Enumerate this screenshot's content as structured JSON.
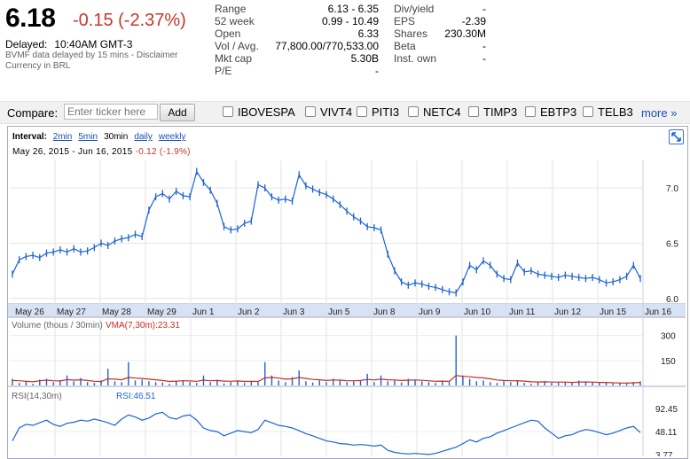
{
  "quote": {
    "price": "6.18",
    "change": "-0.15 (-2.37%)",
    "delayed_label": "Delayed:",
    "delayed_time": "10:40AM GMT-3",
    "disclaimer": "BVMF data delayed by 15 mins - Disclaimer",
    "currency": "Currency in BRL"
  },
  "stats_left": [
    {
      "label": "Range",
      "value": "6.13 - 6.35"
    },
    {
      "label": "52 week",
      "value": "0.99 - 10.49"
    },
    {
      "label": "Open",
      "value": "6.33"
    },
    {
      "label": "Vol / Avg.",
      "value": "77,800.00/770,533.00"
    },
    {
      "label": "Mkt cap",
      "value": "5.30B"
    },
    {
      "label": "P/E",
      "value": "-"
    }
  ],
  "stats_right": [
    {
      "label": "Div/yield",
      "value": "-"
    },
    {
      "label": "EPS",
      "value": "-2.39"
    },
    {
      "label": "Shares",
      "value": "230.30M"
    },
    {
      "label": "Beta",
      "value": "-"
    },
    {
      "label": "Inst. own",
      "value": "-"
    }
  ],
  "compare": {
    "label": "Compare:",
    "placeholder": "Enter ticker here",
    "add_label": "Add",
    "tickers": [
      "IBOVESPA",
      "VIVT4",
      "PITI3",
      "NETC4",
      "TIMP3",
      "EBTP3",
      "TELB3"
    ],
    "more_label": "more »"
  },
  "interval": {
    "label": "Interval:",
    "options": [
      "2min",
      "5min",
      "30min",
      "daily",
      "weekly"
    ],
    "selected": "30min"
  },
  "range_display": {
    "start": "May 26, 2015",
    "sep": "-",
    "end": "Jun 16, 2015",
    "change": "-0.12 (-1.9%)"
  },
  "colors": {
    "price_line": "#1b63d3",
    "vma_line": "#cc2b20",
    "negative": "#c5372c",
    "axis_band": "#d7e3f4",
    "link": "#1a4fb7"
  },
  "icons": [
    "expand-icon",
    "checkbox-icon"
  ],
  "chart_data": [
    {
      "type": "line",
      "title": "",
      "x_labels": [
        "May 26",
        "May 27",
        "May 28",
        "May 29",
        "Jun 1",
        "Jun 2",
        "Jun 3",
        "Jun 5",
        "Jun 8",
        "Jun 9",
        "Jun 10",
        "Jun 11",
        "Jun 12",
        "Jun 15",
        "Jun 16"
      ],
      "y_ticks": [
        "7.0",
        "6.5",
        "6.0"
      ],
      "ylim": [
        5.95,
        7.25
      ],
      "series": [
        {
          "values": [
            6.22,
            6.35,
            6.38,
            6.39,
            6.37,
            6.41,
            6.42,
            6.44,
            6.42,
            6.45,
            6.42,
            6.43,
            6.46,
            6.5,
            6.48,
            6.52,
            6.54,
            6.55,
            6.58,
            6.56,
            6.8,
            6.92,
            6.95,
            6.9,
            6.97,
            6.93,
            6.92,
            7.15,
            7.05,
            6.98,
            6.86,
            6.65,
            6.62,
            6.63,
            6.68,
            6.7,
            7.03,
            7.0,
            6.92,
            6.89,
            6.9,
            6.88,
            7.12,
            7.02,
            6.99,
            6.96,
            6.94,
            6.9,
            6.85,
            6.79,
            6.74,
            6.7,
            6.65,
            6.64,
            6.62,
            6.4,
            6.25,
            6.15,
            6.12,
            6.14,
            6.13,
            6.11,
            6.1,
            6.08,
            6.06,
            6.05,
            6.15,
            6.3,
            6.26,
            6.34,
            6.3,
            6.22,
            6.18,
            6.17,
            6.32,
            6.24,
            6.25,
            6.22,
            6.21,
            6.2,
            6.19,
            6.21,
            6.2,
            6.19,
            6.18,
            6.19,
            6.17,
            6.14,
            6.15,
            6.17,
            6.2,
            6.3,
            6.18
          ]
        }
      ]
    },
    {
      "type": "bar",
      "title": "Volume (thous / 30min)",
      "legend": "VMA(7,30m):23.31",
      "y_ticks": [
        "300",
        "150"
      ],
      "ylim": [
        0,
        330
      ],
      "values": [
        40,
        15,
        25,
        10,
        35,
        40,
        20,
        30,
        60,
        25,
        45,
        20,
        15,
        30,
        100,
        25,
        20,
        140,
        30,
        35,
        25,
        20,
        18,
        10,
        25,
        30,
        20,
        15,
        60,
        20,
        35,
        12,
        20,
        30,
        15,
        25,
        20,
        140,
        60,
        30,
        20,
        50,
        90,
        25,
        18,
        30,
        20,
        40,
        35,
        20,
        25,
        30,
        70,
        20,
        60,
        25,
        30,
        18,
        40,
        35,
        25,
        20,
        15,
        30,
        20,
        300,
        60,
        40,
        25,
        30,
        20,
        15,
        25,
        20,
        30,
        15,
        10,
        20,
        25,
        15,
        18,
        20,
        15,
        30,
        25,
        20,
        15,
        18,
        12,
        15,
        10,
        20,
        25
      ],
      "vma": [
        30,
        28,
        25,
        22,
        28,
        32,
        28,
        27,
        35,
        32,
        34,
        30,
        25,
        24,
        40,
        38,
        34,
        48,
        44,
        42,
        38,
        34,
        30,
        24,
        26,
        28,
        27,
        25,
        32,
        28,
        30,
        26,
        25,
        27,
        24,
        25,
        24,
        45,
        48,
        44,
        38,
        40,
        48,
        42,
        36,
        34,
        30,
        33,
        32,
        29,
        28,
        30,
        36,
        33,
        38,
        34,
        33,
        30,
        32,
        33,
        31,
        28,
        25,
        26,
        24,
        60,
        55,
        52,
        48,
        45,
        40,
        33,
        30,
        28,
        29,
        26,
        22,
        21,
        22,
        20,
        20,
        20,
        18,
        20,
        21,
        20,
        18,
        18,
        16,
        15,
        14,
        16,
        18
      ]
    },
    {
      "type": "line",
      "title": "RSI(14,30m)",
      "legend": "RSI:46.51",
      "y_ticks": [
        "92.45",
        "48.11",
        "3.77"
      ],
      "ylim": [
        3.77,
        92.45
      ],
      "values": [
        30,
        55,
        62,
        60,
        65,
        70,
        62,
        58,
        64,
        66,
        70,
        68,
        72,
        69,
        65,
        60,
        72,
        80,
        76,
        70,
        74,
        82,
        85,
        75,
        72,
        78,
        80,
        70,
        55,
        50,
        48,
        40,
        45,
        50,
        48,
        46,
        52,
        70,
        65,
        60,
        58,
        55,
        50,
        44,
        40,
        35,
        30,
        28,
        25,
        24,
        22,
        23,
        22,
        20,
        22,
        12,
        8,
        6,
        5,
        6,
        5,
        4,
        6,
        10,
        14,
        18,
        25,
        32,
        28,
        35,
        38,
        45,
        50,
        55,
        60,
        65,
        70,
        68,
        55,
        45,
        35,
        40,
        42,
        48,
        52,
        50,
        46,
        42,
        45,
        50,
        55,
        58,
        46
      ]
    }
  ]
}
